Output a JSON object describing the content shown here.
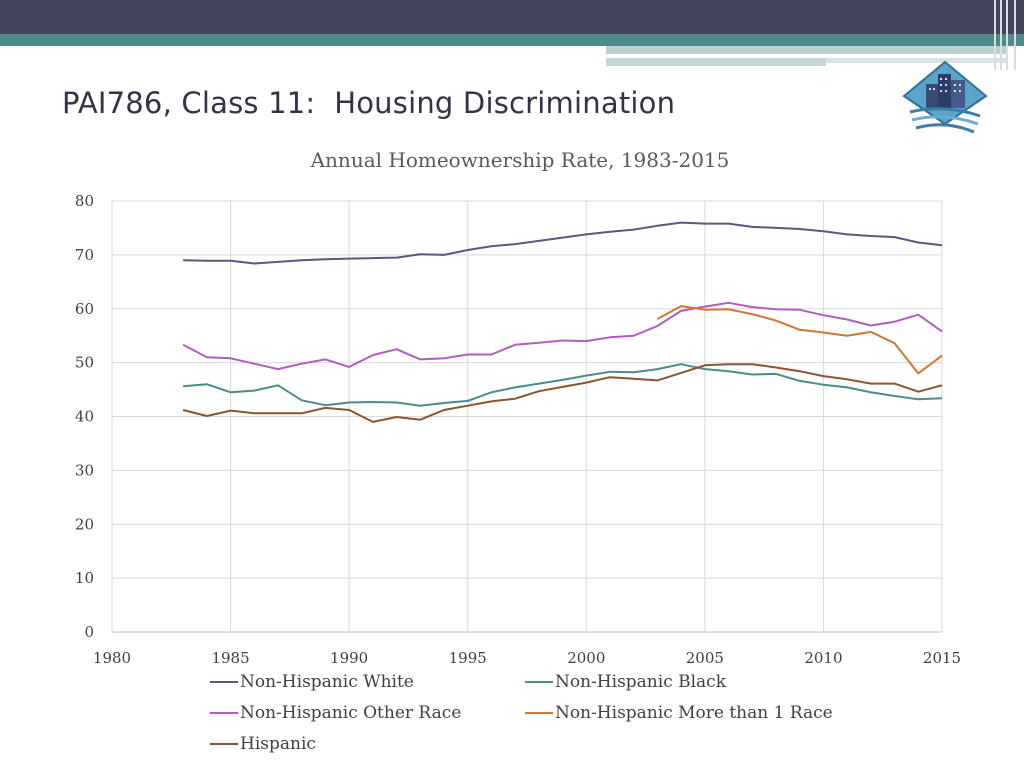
{
  "slide": {
    "title": "PAI786, Class 11:  Housing Discrimination"
  },
  "logo": {
    "icon": "city-buildings-logo-icon"
  },
  "chart_data": {
    "type": "line",
    "title": "Annual Homeownership Rate, 1983-2015",
    "xlabel": "",
    "ylabel": "",
    "xlim": [
      1980,
      2015
    ],
    "ylim": [
      0,
      80
    ],
    "x_ticks": [
      "1980",
      "1985",
      "1990",
      "1995",
      "2000",
      "2005",
      "2010",
      "2015"
    ],
    "y_ticks": [
      "0",
      "10",
      "20",
      "30",
      "40",
      "50",
      "60",
      "70",
      "80"
    ],
    "grid": true,
    "legend_position": "bottom",
    "series": [
      {
        "name": "Non-Hispanic White",
        "color": "#5b5783",
        "x": [
          1983,
          1984,
          1985,
          1986,
          1987,
          1988,
          1989,
          1990,
          1991,
          1992,
          1993,
          1994,
          1995,
          1996,
          1997,
          1998,
          1999,
          2000,
          2001,
          2002,
          2003,
          2004,
          2005,
          2006,
          2007,
          2008,
          2009,
          2010,
          2011,
          2012,
          2013,
          2014,
          2015
        ],
        "values": [
          69.0,
          68.9,
          68.9,
          68.4,
          68.7,
          69.0,
          69.2,
          69.3,
          69.4,
          69.5,
          70.1,
          70.0,
          70.9,
          71.6,
          72.0,
          72.6,
          73.2,
          73.8,
          74.3,
          74.7,
          75.4,
          76.0,
          75.8,
          75.8,
          75.2,
          75.0,
          74.8,
          74.4,
          73.8,
          73.5,
          73.3,
          72.3,
          71.8
        ]
      },
      {
        "name": "Non-Hispanic Black",
        "color": "#4a8c88",
        "x": [
          1983,
          1984,
          1985,
          1986,
          1987,
          1988,
          1989,
          1990,
          1991,
          1992,
          1993,
          1994,
          1995,
          1996,
          1997,
          1998,
          1999,
          2000,
          2001,
          2002,
          2003,
          2004,
          2005,
          2006,
          2007,
          2008,
          2009,
          2010,
          2011,
          2012,
          2013,
          2014,
          2015
        ],
        "values": [
          45.6,
          46.0,
          44.5,
          44.8,
          45.8,
          43.0,
          42.1,
          42.6,
          42.7,
          42.6,
          42.0,
          42.5,
          42.9,
          44.5,
          45.4,
          46.1,
          46.8,
          47.6,
          48.3,
          48.2,
          48.8,
          49.7,
          48.8,
          48.4,
          47.8,
          47.9,
          46.6,
          45.9,
          45.4,
          44.5,
          43.8,
          43.2,
          43.4
        ]
      },
      {
        "name": "Non-Hispanic Other Race",
        "color": "#b15cbf",
        "x": [
          1983,
          1984,
          1985,
          1986,
          1987,
          1988,
          1989,
          1990,
          1991,
          1992,
          1993,
          1994,
          1995,
          1996,
          1997,
          1998,
          1999,
          2000,
          2001,
          2002,
          2003,
          2004,
          2005,
          2006,
          2007,
          2008,
          2009,
          2010,
          2011,
          2012,
          2013,
          2014,
          2015
        ],
        "values": [
          53.3,
          51.0,
          50.8,
          49.8,
          48.8,
          49.8,
          50.6,
          49.2,
          51.4,
          52.5,
          50.6,
          50.8,
          51.5,
          51.5,
          53.3,
          53.7,
          54.1,
          54.0,
          54.7,
          55.0,
          56.8,
          59.6,
          60.4,
          61.1,
          60.3,
          59.9,
          59.8,
          58.8,
          58.0,
          56.9,
          57.6,
          58.9,
          55.8
        ]
      },
      {
        "name": "Non-Hispanic More than 1 Race",
        "color": "#d2752f",
        "x": [
          2003,
          2004,
          2005,
          2006,
          2007,
          2008,
          2009,
          2010,
          2011,
          2012,
          2013,
          2014,
          2015
        ],
        "values": [
          58.1,
          60.5,
          59.8,
          59.9,
          59.0,
          57.8,
          56.1,
          55.6,
          55.0,
          55.7,
          53.6,
          48.0,
          51.3
        ]
      },
      {
        "name": "Hispanic",
        "color": "#8a5530",
        "x": [
          1983,
          1984,
          1985,
          1986,
          1987,
          1988,
          1989,
          1990,
          1991,
          1992,
          1993,
          1994,
          1995,
          1996,
          1997,
          1998,
          1999,
          2000,
          2001,
          2002,
          2003,
          2004,
          2005,
          2006,
          2007,
          2008,
          2009,
          2010,
          2011,
          2012,
          2013,
          2014,
          2015
        ],
        "values": [
          41.2,
          40.1,
          41.1,
          40.6,
          40.6,
          40.6,
          41.6,
          41.2,
          39.0,
          39.9,
          39.4,
          41.2,
          42.0,
          42.8,
          43.3,
          44.7,
          45.5,
          46.3,
          47.3,
          47.0,
          46.7,
          48.1,
          49.5,
          49.7,
          49.7,
          49.1,
          48.4,
          47.5,
          46.9,
          46.1,
          46.1,
          44.6,
          45.8
        ]
      }
    ]
  }
}
